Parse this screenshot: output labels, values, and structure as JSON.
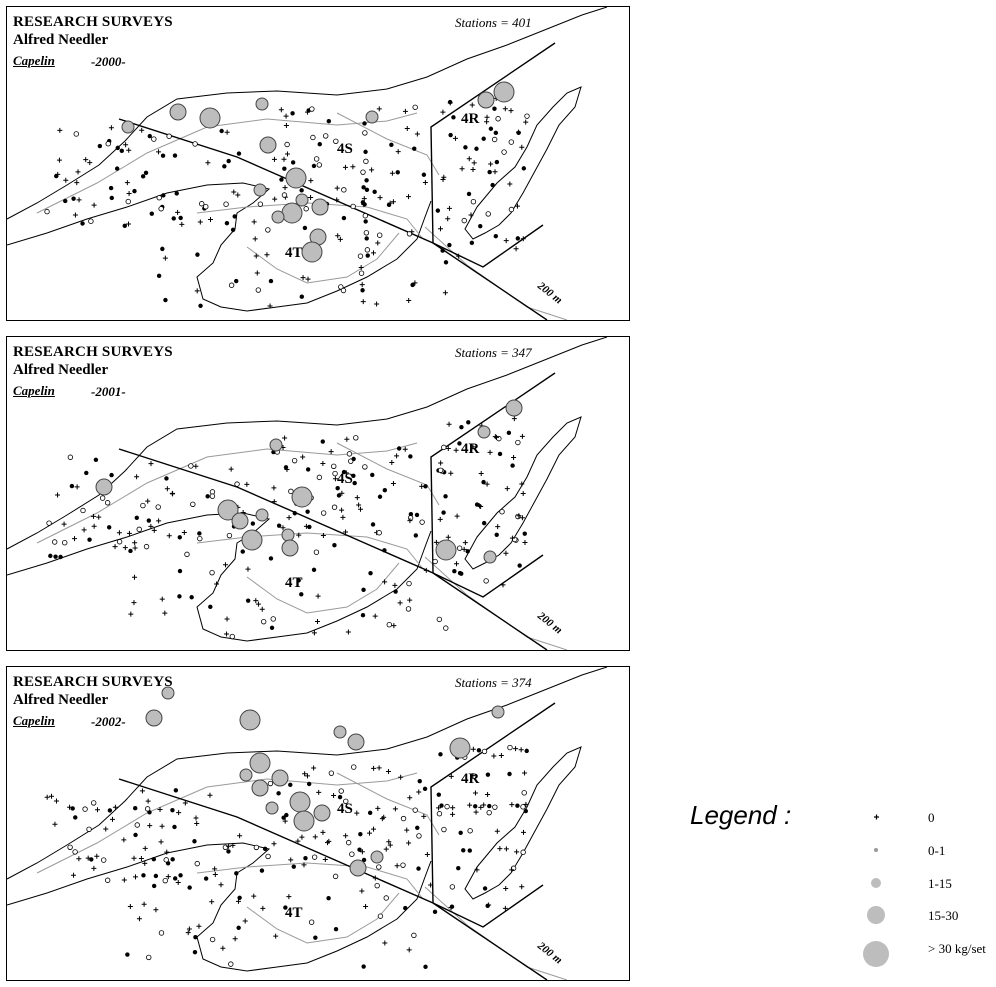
{
  "panels": [
    {
      "title": "RESEARCH SURVEYS",
      "subtitle": "Alfred Needler",
      "species": "Capelin",
      "year": "-2000-",
      "stations": "Stations = 401",
      "divisions": {
        "s": "4S",
        "r": "4R",
        "t": "4T"
      },
      "depth_label": "200 m",
      "big_catches": [
        [
          128,
          127
        ],
        [
          178,
          112
        ],
        [
          210,
          118
        ],
        [
          262,
          104
        ],
        [
          268,
          145
        ],
        [
          296,
          178
        ],
        [
          302,
          200
        ],
        [
          320,
          207
        ],
        [
          292,
          213
        ],
        [
          278,
          217
        ],
        [
          318,
          237
        ],
        [
          312,
          252
        ],
        [
          372,
          117
        ],
        [
          486,
          100
        ],
        [
          504,
          92
        ],
        [
          260,
          190
        ]
      ]
    },
    {
      "title": "RESEARCH SURVEYS",
      "subtitle": "Alfred Needler",
      "species": "Capelin",
      "year": "-2001-",
      "stations": "Stations = 347",
      "divisions": {
        "s": "4S",
        "r": "4R",
        "t": "4T"
      },
      "depth_label": "200 m",
      "big_catches": [
        [
          276,
          445
        ],
        [
          104,
          487
        ],
        [
          228,
          510
        ],
        [
          262,
          515
        ],
        [
          240,
          521
        ],
        [
          252,
          540
        ],
        [
          288,
          535
        ],
        [
          290,
          548
        ],
        [
          302,
          497
        ],
        [
          484,
          432
        ],
        [
          514,
          408
        ],
        [
          446,
          550
        ],
        [
          490,
          557
        ]
      ]
    },
    {
      "title": "RESEARCH SURVEYS",
      "subtitle": "Alfred Needler",
      "species": "Capelin",
      "year": "-2002-",
      "stations": "Stations = 374",
      "divisions": {
        "s": "4S",
        "r": "4R",
        "t": "4T"
      },
      "depth_label": "200 m",
      "big_catches": [
        [
          168,
          693
        ],
        [
          154,
          718
        ],
        [
          250,
          720
        ],
        [
          340,
          732
        ],
        [
          356,
          742
        ],
        [
          260,
          763
        ],
        [
          246,
          775
        ],
        [
          280,
          778
        ],
        [
          300,
          802
        ],
        [
          272,
          808
        ],
        [
          322,
          813
        ],
        [
          304,
          821
        ],
        [
          377,
          857
        ],
        [
          358,
          868
        ],
        [
          460,
          748
        ],
        [
          498,
          712
        ],
        [
          260,
          788
        ]
      ]
    }
  ],
  "legend": {
    "title": "Legend :",
    "items": [
      {
        "label": "0",
        "symbol": "plus"
      },
      {
        "label": "0-1",
        "symbol": "tiny-dot"
      },
      {
        "label": "1-15",
        "symbol": "small-circle"
      },
      {
        "label": "15-30",
        "symbol": "medium-circle"
      },
      {
        "label": "> 30 kg/set",
        "symbol": "large-circle"
      }
    ]
  },
  "colors": {
    "catch_fill": "#bdbdbd",
    "outline": "#000000",
    "isobath": "#9a9a9a"
  }
}
